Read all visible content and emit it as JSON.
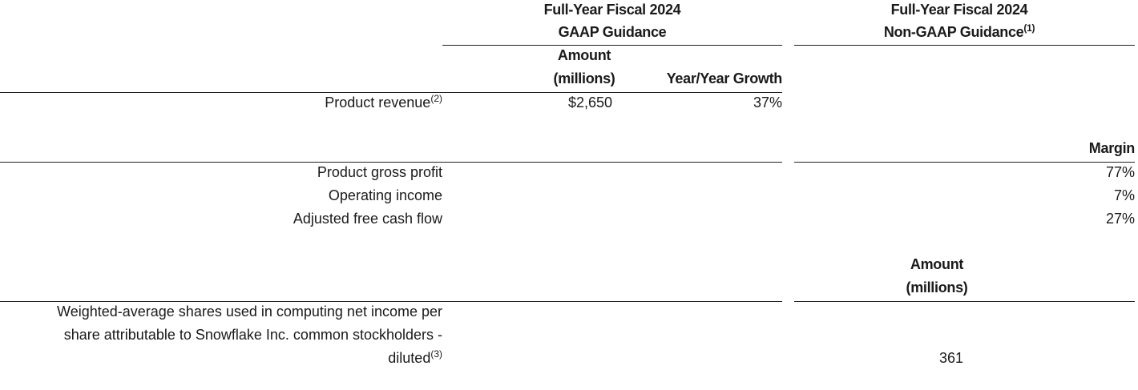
{
  "headers": {
    "gaap_line1": "Full-Year Fiscal 2024",
    "gaap_line2": "GAAP Guidance",
    "nongaap_line1": "Full-Year Fiscal 2024",
    "nongaap_line2": "Non-GAAP Guidance",
    "nongaap_footnote": "(1)"
  },
  "section1": {
    "col_amount_line1": "Amount",
    "col_amount_line2": "(millions)",
    "col_growth": "Year/Year Growth",
    "row": {
      "label": "Product revenue",
      "footnote": "(2)",
      "amount": "$2,650",
      "growth": "37%"
    }
  },
  "section2": {
    "col_margin": "Margin",
    "rows": [
      {
        "label": "Product gross profit",
        "margin": "77%"
      },
      {
        "label": "Operating income",
        "margin": "7%"
      },
      {
        "label": "Adjusted free cash flow",
        "margin": "27%"
      }
    ]
  },
  "section3": {
    "col_amount_line1": "Amount",
    "col_amount_line2": "(millions)",
    "row": {
      "label_line1": "Weighted-average shares used in computing net income per",
      "label_line2": "share attributable to Snowflake Inc. common stockholders -",
      "label_line3": "diluted",
      "footnote": "(3)",
      "amount": "361"
    }
  }
}
